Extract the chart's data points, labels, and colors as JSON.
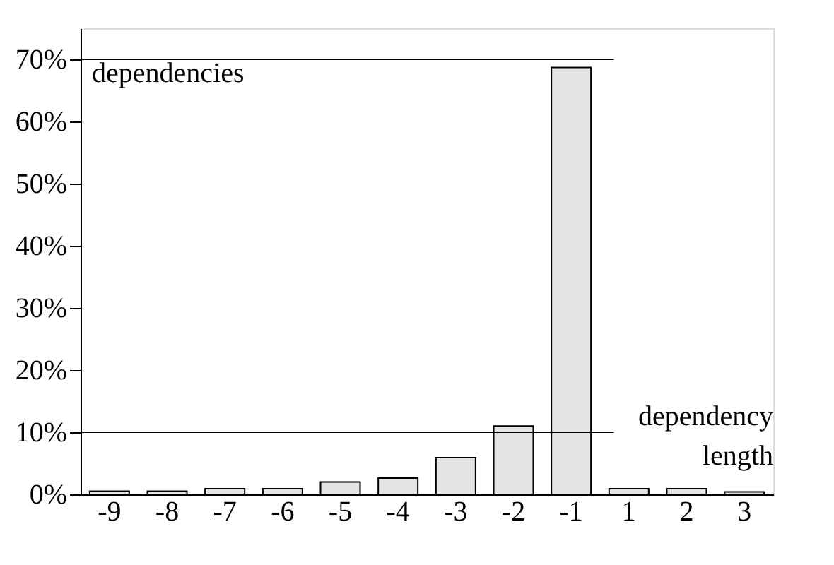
{
  "chart_data": {
    "type": "bar",
    "ylabel": "dependencies",
    "xlabel": "dependency length",
    "categories": [
      "-9",
      "-8",
      "-7",
      "-6",
      "-5",
      "-4",
      "-3",
      "-2",
      "-1",
      "1",
      "2",
      "3"
    ],
    "values": [
      0.5,
      0.5,
      0.9,
      0.9,
      2.0,
      2.6,
      5.9,
      11.0,
      68.7,
      0.9,
      0.9,
      0.4
    ],
    "color": "#e5e5e5",
    "ylim": [
      0,
      75
    ],
    "yticks": [
      {
        "value": 0,
        "label": "0%"
      },
      {
        "value": 10,
        "label": "10%"
      },
      {
        "value": 20,
        "label": "20%"
      },
      {
        "value": 30,
        "label": "30%"
      },
      {
        "value": 40,
        "label": "40%"
      },
      {
        "value": 50,
        "label": "50%"
      },
      {
        "value": 60,
        "label": "60%"
      },
      {
        "value": 70,
        "label": "70%"
      }
    ],
    "ref_lines": [
      {
        "axis": "y",
        "value": 10,
        "color": "#000000"
      },
      {
        "axis": "y",
        "value": 70,
        "color": "#000000"
      }
    ],
    "grid": false
  }
}
